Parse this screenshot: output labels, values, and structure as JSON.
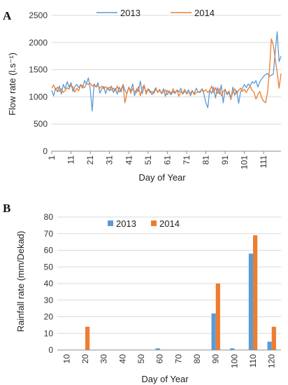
{
  "chart_data": [
    {
      "panel_label": "A",
      "type": "line",
      "xlabel": "Day of Year",
      "ylabel": "Flow rate (l.s⁻¹)",
      "ylim": [
        0,
        2500
      ],
      "yticks": [
        0,
        500,
        1000,
        1500,
        2000,
        2500
      ],
      "xlim": [
        1,
        120
      ],
      "xticks": [
        1,
        11,
        21,
        31,
        41,
        51,
        61,
        71,
        81,
        91,
        101,
        111
      ],
      "grid": "horizontal",
      "legend": "top-center",
      "series": [
        {
          "name": "2013",
          "color": "#5b9bd5",
          "values": [
            1120,
            1020,
            1160,
            1090,
            1200,
            1050,
            1230,
            1150,
            1280,
            1180,
            1260,
            1100,
            1190,
            1230,
            1170,
            1220,
            1160,
            1300,
            1240,
            1350,
            1150,
            740,
            1240,
            1180,
            1260,
            1070,
            1150,
            1190,
            1060,
            1170,
            1110,
            1200,
            1080,
            1160,
            1050,
            1180,
            1090,
            1230,
            1120,
            1060,
            1180,
            1110,
            1240,
            1020,
            1150,
            1100,
            1290,
            1060,
            1200,
            1080,
            1150,
            1120,
            1040,
            1100,
            1170,
            1080,
            1120,
            1060,
            1150,
            1010,
            1120,
            1080,
            1040,
            1100,
            1060,
            1130,
            1090,
            1160,
            1050,
            1100,
            1080,
            1130,
            1020,
            1110,
            1060,
            1160,
            1090,
            1080,
            1150,
            1050,
            890,
            800,
            1130,
            1060,
            1180,
            980,
            1170,
            1050,
            1220,
            890,
            1140,
            1040,
            1080,
            950,
            1180,
            1030,
            1120,
            880,
            1090,
            1160,
            1230,
            1170,
            1240,
            1200,
            1280,
            1250,
            1300,
            1180,
            1280,
            1330,
            1380,
            1410,
            1430,
            1380,
            1400,
            1420,
            1820,
            2200,
            1650,
            1750
          ]
        },
        {
          "name": "2014",
          "color": "#ed7d31",
          "values": [
            1160,
            1220,
            1130,
            1180,
            1100,
            1150,
            1080,
            1120,
            1170,
            1140,
            1220,
            1180,
            1090,
            1160,
            1110,
            1230,
            1200,
            1170,
            1240,
            1230,
            1250,
            1200,
            1220,
            1180,
            1210,
            1160,
            1200,
            1150,
            1190,
            1140,
            1180,
            1120,
            1160,
            1110,
            1200,
            1090,
            1140,
            1220,
            890,
            1060,
            1180,
            1070,
            1150,
            1100,
            1080,
            1190,
            1020,
            1160,
            1220,
            1050,
            1140,
            1080,
            1100,
            1060,
            1150,
            1080,
            1140,
            1060,
            1090,
            1130,
            1040,
            1110,
            1060,
            1150,
            1080,
            1120,
            1010,
            1100,
            1060,
            1140,
            1050,
            1090,
            1070,
            1120,
            1040,
            1080,
            1090,
            1100,
            1150,
            1100,
            1130,
            1080,
            1120,
            1200,
            1080,
            1170,
            1060,
            1150,
            1020,
            1100,
            1140,
            1060,
            1110,
            980,
            1080,
            1150,
            1060,
            1120,
            1160,
            1100,
            1140,
            1080,
            1150,
            1190,
            1120,
            1080,
            960,
            1040,
            1100,
            980,
            920,
            890,
            1080,
            1500,
            2070,
            1950,
            1700,
            1450,
            1160,
            1430
          ]
        }
      ]
    },
    {
      "panel_label": "B",
      "type": "bar",
      "xlabel": "Day of Year",
      "ylabel": "Rainfall rate (mm/Dekad)",
      "ylim": [
        0,
        80
      ],
      "yticks": [
        0,
        10,
        20,
        30,
        40,
        50,
        60,
        70,
        80
      ],
      "categories": [
        "10",
        "20",
        "30",
        "40",
        "50",
        "60",
        "70",
        "80",
        "90",
        "100",
        "110",
        "120"
      ],
      "grid": "horizontal",
      "legend": "top-center",
      "series": [
        {
          "name": "2013",
          "color": "#5b9bd5",
          "values": [
            0,
            0,
            0,
            0,
            0,
            1,
            0,
            0,
            22,
            1,
            58,
            5
          ]
        },
        {
          "name": "2014",
          "color": "#ed7d31",
          "values": [
            0,
            14,
            0,
            0,
            0,
            0,
            0,
            0,
            40,
            0,
            69,
            14
          ]
        }
      ]
    }
  ]
}
